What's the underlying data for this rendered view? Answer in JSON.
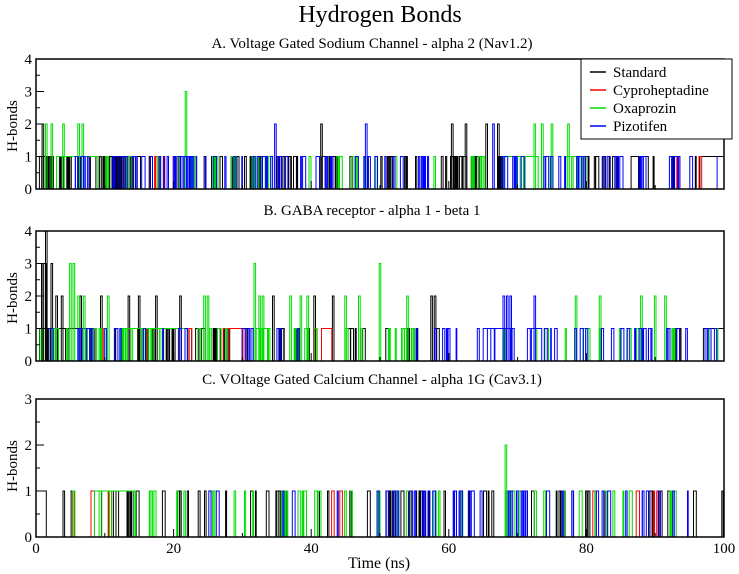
{
  "chart_data": {
    "type": "line",
    "title": "Hydrogen Bonds",
    "xlabel": "Time (ns)",
    "ylabel": "H-bonds",
    "xlim": [
      0,
      100
    ],
    "xticks": [
      0,
      20,
      40,
      60,
      80,
      100
    ],
    "legend": {
      "placement": "top-right of panel A",
      "entries": [
        {
          "name": "Standard",
          "color": "#000000"
        },
        {
          "name": "Cyproheptadine",
          "color": "#ff0000"
        },
        {
          "name": "Oxaprozin",
          "color": "#00dd00"
        },
        {
          "name": "Pizotifen",
          "color": "#0000ff"
        }
      ]
    },
    "series_colors": {
      "Standard": "#000000",
      "Cyproheptadine": "#ff0000",
      "Oxaprozin": "#00dd00",
      "Pizotifen": "#0000ff"
    },
    "panels": [
      {
        "id": "A",
        "title": "A. Voltage Gated Sodium Channel - alpha 2 (Nav1.2)",
        "ylim": [
          0,
          4
        ],
        "yticks": [
          0,
          1,
          2,
          3,
          4
        ],
        "spikes": [
          {
            "series": "Oxaprozin",
            "t": 1.5,
            "v": 2
          },
          {
            "series": "Oxaprozin",
            "t": 2.3,
            "v": 2
          },
          {
            "series": "Oxaprozin",
            "t": 4.0,
            "v": 2
          },
          {
            "series": "Oxaprozin",
            "t": 6.2,
            "v": 2
          },
          {
            "series": "Oxaprozin",
            "t": 6.8,
            "v": 2
          },
          {
            "series": "Oxaprozin",
            "t": 21.8,
            "v": 3
          },
          {
            "series": "Oxaprozin",
            "t": 72.5,
            "v": 2
          },
          {
            "series": "Oxaprozin",
            "t": 73.6,
            "v": 2
          },
          {
            "series": "Oxaprozin",
            "t": 75.0,
            "v": 2
          },
          {
            "series": "Oxaprozin",
            "t": 77.4,
            "v": 2
          },
          {
            "series": "Standard",
            "t": 1.0,
            "v": 2
          },
          {
            "series": "Standard",
            "t": 41.5,
            "v": 2
          },
          {
            "series": "Standard",
            "t": 60.5,
            "v": 2
          },
          {
            "series": "Standard",
            "t": 62.5,
            "v": 2
          },
          {
            "series": "Standard",
            "t": 65.5,
            "v": 2
          },
          {
            "series": "Standard",
            "t": 67.2,
            "v": 2
          },
          {
            "series": "Pizotifen",
            "t": 34.8,
            "v": 2
          },
          {
            "series": "Pizotifen",
            "t": 48.0,
            "v": 2
          },
          {
            "series": "Pizotifen",
            "t": 66.5,
            "v": 2
          }
        ],
        "blocks": [
          {
            "series": "Oxaprozin",
            "from": 3.0,
            "to": 9.0,
            "v": 1
          },
          {
            "series": "Oxaprozin",
            "from": 68.0,
            "to": 73.0,
            "v": 1
          },
          {
            "series": "Oxaprozin",
            "from": 77.0,
            "to": 79.5,
            "v": 1
          },
          {
            "series": "Standard",
            "from": 0.0,
            "to": 1.5,
            "v": 1
          },
          {
            "series": "Standard",
            "from": 86.5,
            "to": 89.0,
            "v": 1
          },
          {
            "series": "Standard",
            "from": 96.5,
            "to": 100.0,
            "v": 1
          }
        ],
        "segments": [
          {
            "series": "Standard",
            "from": 0,
            "to": 14,
            "density": 30
          },
          {
            "series": "Pizotifen",
            "from": 5,
            "to": 30,
            "density": 32
          },
          {
            "series": "Standard",
            "from": 10,
            "to": 35,
            "density": 22
          },
          {
            "series": "Oxaprozin",
            "from": 10,
            "to": 30,
            "density": 16
          },
          {
            "series": "Pizotifen",
            "from": 30,
            "to": 58,
            "density": 30
          },
          {
            "series": "Standard",
            "from": 35,
            "to": 62,
            "density": 26
          },
          {
            "series": "Oxaprozin",
            "from": 30,
            "to": 60,
            "density": 14
          },
          {
            "series": "Cyproheptadine",
            "from": 17,
            "to": 24,
            "density": 4
          },
          {
            "series": "Standard",
            "from": 60,
            "to": 68,
            "density": 14
          },
          {
            "series": "Oxaprozin",
            "from": 60,
            "to": 80,
            "density": 14
          },
          {
            "series": "Pizotifen",
            "from": 67,
            "to": 99,
            "density": 28
          },
          {
            "series": "Standard",
            "from": 78,
            "to": 99,
            "density": 12
          },
          {
            "series": "Cyproheptadine",
            "from": 88,
            "to": 97,
            "density": 3
          }
        ]
      },
      {
        "id": "B",
        "title": "B. GABA receptor - alpha 1 - beta 1",
        "ylim": [
          0,
          4
        ],
        "yticks": [
          0,
          1,
          2,
          3,
          4
        ],
        "spikes": [
          {
            "series": "Standard",
            "t": 1.0,
            "v": 3
          },
          {
            "series": "Standard",
            "t": 1.5,
            "v": 4
          },
          {
            "series": "Standard",
            "t": 2.3,
            "v": 3
          },
          {
            "series": "Standard",
            "t": 3.0,
            "v": 2
          },
          {
            "series": "Standard",
            "t": 3.8,
            "v": 2
          },
          {
            "series": "Standard",
            "t": 6.5,
            "v": 2
          },
          {
            "series": "Standard",
            "t": 9.5,
            "v": 2
          },
          {
            "series": "Standard",
            "t": 13.5,
            "v": 2
          },
          {
            "series": "Standard",
            "t": 15.0,
            "v": 2
          },
          {
            "series": "Standard",
            "t": 17.5,
            "v": 2
          },
          {
            "series": "Standard",
            "t": 21.0,
            "v": 2
          },
          {
            "series": "Standard",
            "t": 34.5,
            "v": 2
          },
          {
            "series": "Standard",
            "t": 40.5,
            "v": 2
          },
          {
            "series": "Standard",
            "t": 43.2,
            "v": 2
          },
          {
            "series": "Standard",
            "t": 57.5,
            "v": 2
          },
          {
            "series": "Standard",
            "t": 58.0,
            "v": 2
          },
          {
            "series": "Oxaprozin",
            "t": 5.0,
            "v": 3
          },
          {
            "series": "Oxaprozin",
            "t": 5.5,
            "v": 3
          },
          {
            "series": "Oxaprozin",
            "t": 6.2,
            "v": 2
          },
          {
            "series": "Oxaprozin",
            "t": 7.0,
            "v": 2
          },
          {
            "series": "Oxaprozin",
            "t": 10.5,
            "v": 2
          },
          {
            "series": "Oxaprozin",
            "t": 24.5,
            "v": 2
          },
          {
            "series": "Oxaprozin",
            "t": 25.0,
            "v": 2
          },
          {
            "series": "Oxaprozin",
            "t": 31.8,
            "v": 3
          },
          {
            "series": "Oxaprozin",
            "t": 32.5,
            "v": 2
          },
          {
            "series": "Oxaprozin",
            "t": 33.0,
            "v": 2
          },
          {
            "series": "Oxaprozin",
            "t": 37.0,
            "v": 2
          },
          {
            "series": "Oxaprozin",
            "t": 38.5,
            "v": 2
          },
          {
            "series": "Oxaprozin",
            "t": 39.5,
            "v": 2
          },
          {
            "series": "Oxaprozin",
            "t": 45.0,
            "v": 2
          },
          {
            "series": "Oxaprozin",
            "t": 47.0,
            "v": 2
          },
          {
            "series": "Oxaprozin",
            "t": 50.0,
            "v": 3
          },
          {
            "series": "Oxaprozin",
            "t": 54.0,
            "v": 2
          },
          {
            "series": "Oxaprozin",
            "t": 78.5,
            "v": 2
          },
          {
            "series": "Oxaprozin",
            "t": 82.0,
            "v": 2
          },
          {
            "series": "Oxaprozin",
            "t": 88.0,
            "v": 2
          },
          {
            "series": "Oxaprozin",
            "t": 90.0,
            "v": 2
          },
          {
            "series": "Oxaprozin",
            "t": 91.5,
            "v": 2
          },
          {
            "series": "Pizotifen",
            "t": 68.0,
            "v": 2
          },
          {
            "series": "Pizotifen",
            "t": 68.5,
            "v": 2
          },
          {
            "series": "Pizotifen",
            "t": 69.0,
            "v": 2
          },
          {
            "series": "Pizotifen",
            "t": 72.5,
            "v": 2
          }
        ],
        "blocks": [
          {
            "series": "Standard",
            "from": 0.0,
            "to": 0.8,
            "v": 2
          },
          {
            "series": "Standard",
            "from": 0.8,
            "to": 1.5,
            "v": 3
          },
          {
            "series": "Standard",
            "from": 0.0,
            "to": 8.0,
            "v": 1
          },
          {
            "series": "Oxaprozin",
            "from": 13.0,
            "to": 22.0,
            "v": 1
          },
          {
            "series": "Standard",
            "from": 20.0,
            "to": 22.0,
            "v": 1
          },
          {
            "series": "Cyproheptadine",
            "from": 28.0,
            "to": 30.0,
            "v": 1
          },
          {
            "series": "Oxaprozin",
            "from": 32.0,
            "to": 34.0,
            "v": 1
          },
          {
            "series": "Cyproheptadine",
            "from": 41.5,
            "to": 43.0,
            "v": 1
          },
          {
            "series": "Pizotifen",
            "from": 65.0,
            "to": 69.0,
            "v": 1
          },
          {
            "series": "Pizotifen",
            "from": 72.0,
            "to": 73.5,
            "v": 1
          },
          {
            "series": "Standard",
            "from": 97.0,
            "to": 100.0,
            "v": 1
          }
        ],
        "segments": [
          {
            "series": "Pizotifen",
            "from": 0,
            "to": 22,
            "density": 12
          },
          {
            "series": "Standard",
            "from": 0,
            "to": 45,
            "density": 34
          },
          {
            "series": "Oxaprozin",
            "from": 0,
            "to": 55,
            "density": 44
          },
          {
            "series": "Cyproheptadine",
            "from": 8,
            "to": 45,
            "density": 6
          },
          {
            "series": "Pizotifen",
            "from": 25,
            "to": 40,
            "density": 6
          },
          {
            "series": "Standard",
            "from": 45,
            "to": 60,
            "density": 10
          },
          {
            "series": "Pizotifen",
            "from": 55,
            "to": 100,
            "density": 34
          },
          {
            "series": "Oxaprozin",
            "from": 60,
            "to": 100,
            "density": 14
          },
          {
            "series": "Standard",
            "from": 90,
            "to": 100,
            "density": 4
          }
        ]
      },
      {
        "id": "C",
        "title": "C. VOltage Gated Calcium Channel - alpha 1G (Cav3.1)",
        "ylim": [
          0,
          3
        ],
        "yticks": [
          0,
          1,
          2,
          3
        ],
        "spikes": [
          {
            "series": "Oxaprozin",
            "t": 68.3,
            "v": 2
          }
        ],
        "blocks": [
          {
            "series": "Standard",
            "from": 0.0,
            "to": 1.5,
            "v": 1
          },
          {
            "series": "Cyproheptadine",
            "from": 8.0,
            "to": 10.5,
            "v": 1
          },
          {
            "series": "Oxaprozin",
            "from": 8.5,
            "to": 14.5,
            "v": 1
          },
          {
            "series": "Standard",
            "from": 9.5,
            "to": 12.0,
            "v": 1
          },
          {
            "series": "Standard",
            "from": 35.0,
            "to": 36.5,
            "v": 1
          }
        ],
        "segments": [
          {
            "series": "Standard",
            "from": 0,
            "to": 50,
            "density": 24
          },
          {
            "series": "Oxaprozin",
            "from": 2,
            "to": 50,
            "density": 26
          },
          {
            "series": "Cyproheptadine",
            "from": 1,
            "to": 45,
            "density": 4
          },
          {
            "series": "Pizotifen",
            "from": 20,
            "to": 50,
            "density": 6
          },
          {
            "series": "Standard",
            "from": 50,
            "to": 100,
            "density": 34
          },
          {
            "series": "Pizotifen",
            "from": 50,
            "to": 96,
            "density": 36
          },
          {
            "series": "Oxaprozin",
            "from": 50,
            "to": 95,
            "density": 20
          },
          {
            "series": "Cyproheptadine",
            "from": 80,
            "to": 96,
            "density": 4
          }
        ]
      }
    ]
  }
}
